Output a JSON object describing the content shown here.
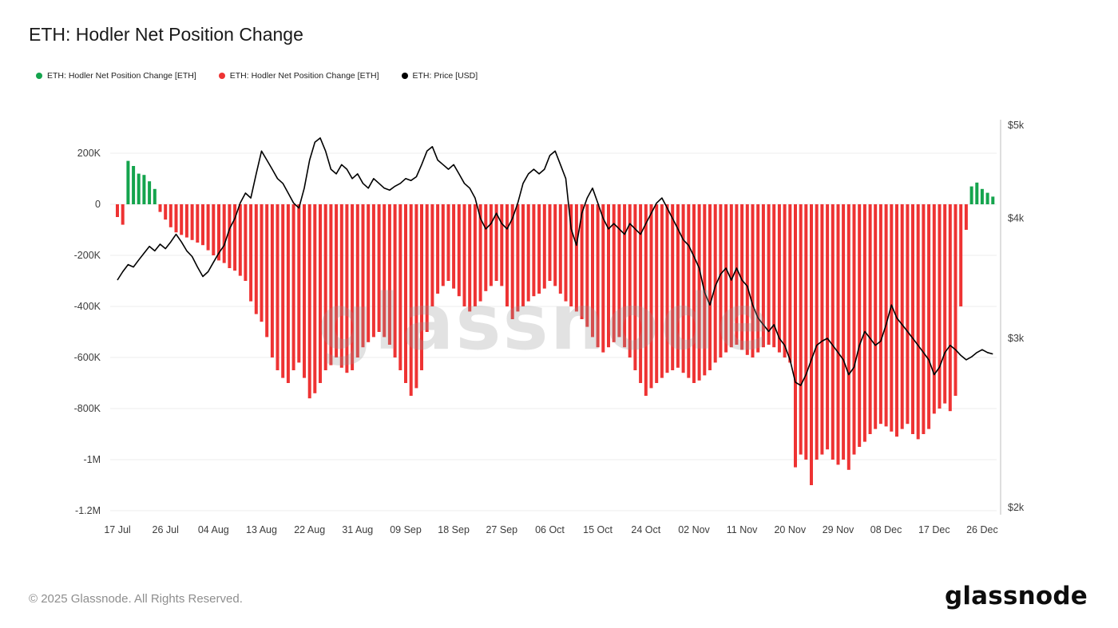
{
  "header": {
    "title": "ETH: Hodler Net Position Change"
  },
  "legend": {
    "items": [
      {
        "label": "ETH: Hodler Net Position Change [ETH]",
        "color": "#14a44d"
      },
      {
        "label": "ETH: Hodler Net Position Change [ETH]",
        "color": "#ee3333"
      },
      {
        "label": "ETH: Price [USD]",
        "color": "#000000"
      }
    ]
  },
  "watermark": {
    "text": "glassnode"
  },
  "footer": {
    "copyright": "© 2025 Glassnode. All Rights Reserved.",
    "logo_text": "glassnode"
  },
  "chart_data": {
    "type": "bar+line",
    "title": "ETH: Hodler Net Position Change",
    "grid": true,
    "legend_position": "top-left",
    "x_axis": {
      "tick_labels": [
        "17 Jul",
        "26 Jul",
        "04 Aug",
        "13 Aug",
        "22 Aug",
        "31 Aug",
        "09 Sep",
        "18 Sep",
        "27 Sep",
        "06 Oct",
        "15 Oct",
        "24 Oct",
        "02 Nov",
        "11 Nov",
        "20 Nov",
        "29 Nov",
        "08 Dec",
        "17 Dec",
        "26 Dec"
      ],
      "days_per_tick": 9
    },
    "y_axis_left": {
      "label": "Hodler Net Position Change [ETH]",
      "tick_labels": [
        "200K",
        "0",
        "-200K",
        "-400K",
        "-600K",
        "-800K",
        "-1M",
        "-1.2M"
      ],
      "tick_values_K": [
        200,
        0,
        -200,
        -400,
        -600,
        -800,
        -1000,
        -1200
      ],
      "range_K": [
        -1250,
        250
      ]
    },
    "y_axis_right": {
      "label": "ETH: Price [USD]",
      "tick_labels": [
        "$5k",
        "$4k",
        "$3k",
        "$2k"
      ],
      "tick_values": [
        5000,
        4000,
        3000,
        2000
      ],
      "scale": "log",
      "range": [
        2000,
        5000
      ]
    },
    "series": [
      {
        "name": "ETH: Hodler Net Position Change [ETH]",
        "type": "bar",
        "axis": "left",
        "unit": "K ETH",
        "positive_color": "#14a44d",
        "negative_color": "#ee3333",
        "values_K": [
          -50,
          -80,
          170,
          150,
          120,
          115,
          90,
          60,
          -30,
          -60,
          -90,
          -110,
          -120,
          -130,
          -140,
          -150,
          -160,
          -180,
          -200,
          -220,
          -230,
          -250,
          -260,
          -280,
          -300,
          -380,
          -430,
          -460,
          -520,
          -600,
          -650,
          -680,
          -700,
          -650,
          -620,
          -680,
          -760,
          -740,
          -700,
          -650,
          -630,
          -600,
          -640,
          -660,
          -650,
          -600,
          -560,
          -540,
          -520,
          -500,
          -520,
          -550,
          -600,
          -650,
          -700,
          -750,
          -720,
          -650,
          -500,
          -400,
          -350,
          -320,
          -300,
          -330,
          -360,
          -400,
          -420,
          -400,
          -380,
          -340,
          -320,
          -300,
          -320,
          -400,
          -450,
          -420,
          -400,
          -380,
          -360,
          -350,
          -330,
          -300,
          -320,
          -350,
          -380,
          -400,
          -420,
          -450,
          -480,
          -520,
          -560,
          -580,
          -560,
          -540,
          -520,
          -560,
          -600,
          -650,
          -700,
          -750,
          -720,
          -700,
          -680,
          -660,
          -650,
          -640,
          -660,
          -680,
          -700,
          -690,
          -670,
          -650,
          -620,
          -600,
          -580,
          -560,
          -550,
          -570,
          -590,
          -600,
          -580,
          -560,
          -550,
          -560,
          -580,
          -600,
          -620,
          -1030,
          -980,
          -1000,
          -1100,
          -1000,
          -980,
          -960,
          -1000,
          -1020,
          -1000,
          -1040,
          -980,
          -950,
          -930,
          -900,
          -880,
          -860,
          -870,
          -890,
          -910,
          -880,
          -860,
          -900,
          -920,
          -900,
          -880,
          -820,
          -800,
          -780,
          -810,
          -750,
          -400,
          -100,
          70,
          85,
          60,
          45,
          30
        ]
      },
      {
        "name": "ETH: Price [USD]",
        "type": "line",
        "axis": "right",
        "unit": "USD",
        "color": "#000000",
        "values_USD": [
          3450,
          3520,
          3580,
          3560,
          3620,
          3680,
          3740,
          3700,
          3760,
          3720,
          3780,
          3850,
          3780,
          3700,
          3650,
          3560,
          3480,
          3520,
          3600,
          3680,
          3750,
          3900,
          4000,
          4150,
          4250,
          4200,
          4450,
          4700,
          4600,
          4500,
          4400,
          4350,
          4250,
          4150,
          4100,
          4300,
          4600,
          4800,
          4850,
          4700,
          4500,
          4450,
          4550,
          4500,
          4400,
          4450,
          4350,
          4300,
          4400,
          4350,
          4300,
          4280,
          4320,
          4350,
          4400,
          4380,
          4420,
          4550,
          4700,
          4750,
          4600,
          4550,
          4500,
          4550,
          4450,
          4350,
          4300,
          4200,
          4000,
          3900,
          3950,
          4050,
          3950,
          3900,
          4000,
          4150,
          4350,
          4450,
          4500,
          4450,
          4500,
          4650,
          4700,
          4550,
          4400,
          3900,
          3750,
          4050,
          4200,
          4300,
          4150,
          4000,
          3900,
          3950,
          3900,
          3850,
          3950,
          3900,
          3850,
          3950,
          4050,
          4150,
          4200,
          4100,
          4000,
          3900,
          3800,
          3750,
          3650,
          3550,
          3350,
          3250,
          3400,
          3500,
          3550,
          3450,
          3550,
          3450,
          3400,
          3250,
          3150,
          3100,
          3050,
          3100,
          3000,
          2950,
          2850,
          2700,
          2680,
          2750,
          2850,
          2950,
          2980,
          3000,
          2950,
          2900,
          2850,
          2750,
          2800,
          2950,
          3050,
          3000,
          2950,
          2980,
          3100,
          3250,
          3150,
          3100,
          3050,
          3000,
          2950,
          2900,
          2850,
          2750,
          2800,
          2900,
          2950,
          2920,
          2880,
          2850,
          2870,
          2900,
          2920,
          2900,
          2890
        ]
      }
    ]
  }
}
